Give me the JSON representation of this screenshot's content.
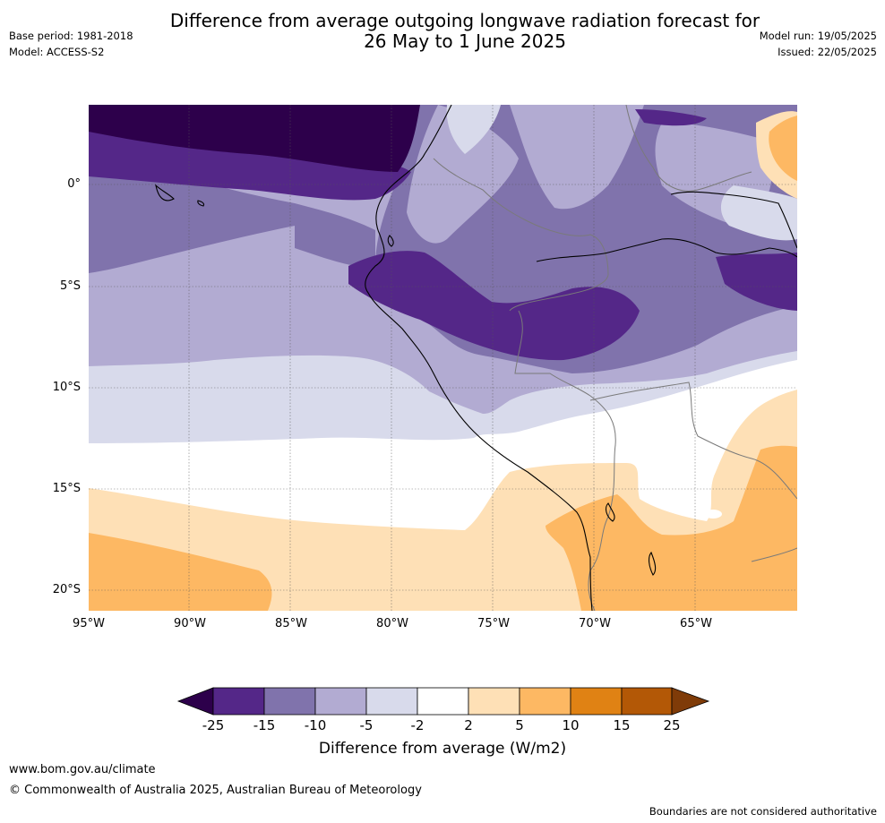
{
  "title_line1": "Difference from average outgoing longwave radiation forecast for",
  "title_line2": "26 May to 1 June 2025",
  "base_period": "Base period: 1981-2018",
  "model": "Model: ACCESS-S2",
  "model_run": "Model run: 19/05/2025",
  "issued": "Issued: 22/05/2025",
  "lat_labels": [
    "0°",
    "5°S",
    "10°S",
    "15°S",
    "20°S"
  ],
  "lon_labels": [
    "95°W",
    "90°W",
    "85°W",
    "80°W",
    "75°W",
    "70°W",
    "65°W"
  ],
  "colorbar": {
    "ticks": [
      "-25",
      "-15",
      "-10",
      "-5",
      "-2",
      "2",
      "5",
      "10",
      "15",
      "25"
    ],
    "colors": [
      "#2d004b",
      "#542788",
      "#8073ac",
      "#b2abd2",
      "#d8daeb",
      "#ffffff",
      "#fee0b6",
      "#fdb863",
      "#e08214",
      "#b35806",
      "#7f3b08"
    ],
    "label": "Difference from average (W/m2)"
  },
  "footer_url": "www.bom.gov.au/climate",
  "footer_copyright": "© Commonwealth of Australia 2025, Australian Bureau of Meteorology",
  "disclaimer": "Boundaries are not considered authoritative"
}
